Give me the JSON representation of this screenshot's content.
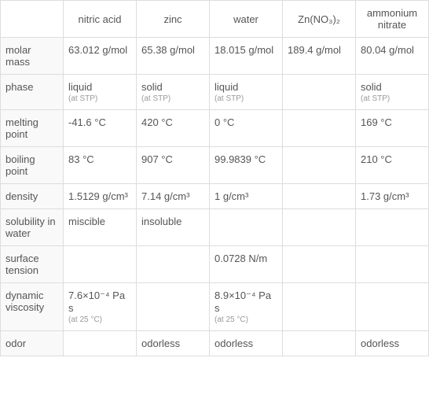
{
  "columns": [
    "",
    "nitric acid",
    "zinc",
    "water",
    "Zn(NO₃)₂",
    "ammonium nitrate"
  ],
  "rows": [
    {
      "label": "molar mass",
      "cells": [
        {
          "value": "63.012 g/mol"
        },
        {
          "value": "65.38 g/mol"
        },
        {
          "value": "18.015 g/mol"
        },
        {
          "value": "189.4 g/mol"
        },
        {
          "value": "80.04 g/mol"
        }
      ]
    },
    {
      "label": "phase",
      "cells": [
        {
          "value": "liquid",
          "note": "(at STP)"
        },
        {
          "value": "solid",
          "note": "(at STP)"
        },
        {
          "value": "liquid",
          "note": "(at STP)"
        },
        {
          "value": ""
        },
        {
          "value": "solid",
          "note": "(at STP)"
        }
      ]
    },
    {
      "label": "melting point",
      "cells": [
        {
          "value": "-41.6 °C"
        },
        {
          "value": "420 °C"
        },
        {
          "value": "0 °C"
        },
        {
          "value": ""
        },
        {
          "value": "169 °C"
        }
      ]
    },
    {
      "label": "boiling point",
      "cells": [
        {
          "value": "83 °C"
        },
        {
          "value": "907 °C"
        },
        {
          "value": "99.9839 °C"
        },
        {
          "value": ""
        },
        {
          "value": "210 °C"
        }
      ]
    },
    {
      "label": "density",
      "cells": [
        {
          "value": "1.5129 g/cm³"
        },
        {
          "value": "7.14 g/cm³"
        },
        {
          "value": "1 g/cm³"
        },
        {
          "value": ""
        },
        {
          "value": "1.73 g/cm³"
        }
      ]
    },
    {
      "label": "solubility in water",
      "cells": [
        {
          "value": "miscible"
        },
        {
          "value": "insoluble"
        },
        {
          "value": ""
        },
        {
          "value": ""
        },
        {
          "value": ""
        }
      ]
    },
    {
      "label": "surface tension",
      "cells": [
        {
          "value": ""
        },
        {
          "value": ""
        },
        {
          "value": "0.0728 N/m"
        },
        {
          "value": ""
        },
        {
          "value": ""
        }
      ]
    },
    {
      "label": "dynamic viscosity",
      "cells": [
        {
          "value": "7.6×10⁻⁴ Pa s",
          "note": "(at 25 °C)"
        },
        {
          "value": ""
        },
        {
          "value": "8.9×10⁻⁴ Pa s",
          "note": "(at 25 °C)"
        },
        {
          "value": ""
        },
        {
          "value": ""
        }
      ]
    },
    {
      "label": "odor",
      "cells": [
        {
          "value": ""
        },
        {
          "value": "odorless"
        },
        {
          "value": "odorless"
        },
        {
          "value": ""
        },
        {
          "value": "odorless"
        }
      ]
    }
  ],
  "styling": {
    "font_family": "Arial, sans-serif",
    "font_size": 13,
    "note_font_size": 10,
    "text_color": "#555",
    "note_color": "#999",
    "border_color": "#ddd",
    "row_header_bg": "#f9f9f9",
    "col_label_width": 80,
    "col_data_width": 93
  }
}
